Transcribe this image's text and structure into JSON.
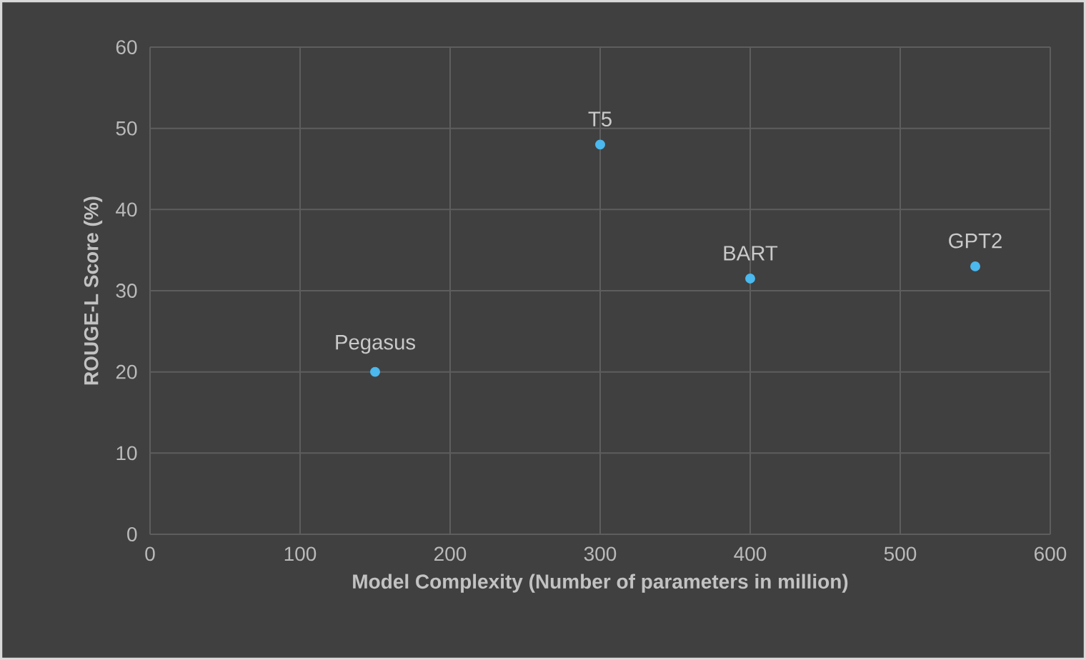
{
  "chart_data": {
    "type": "scatter",
    "xlabel": "Model Complexity (Number of parameters in million)",
    "ylabel": "ROUGE-L Score (%)",
    "x": [
      150,
      300,
      400,
      550
    ],
    "series": [
      {
        "color": "#4bb8ee",
        "values": [
          20,
          48,
          31.5,
          33
        ]
      }
    ],
    "annotations": [
      {
        "text": "Pegasus",
        "x": 150,
        "y": 20
      },
      {
        "text": "T5",
        "x": 300,
        "y": 48
      },
      {
        "text": "BART",
        "x": 400,
        "y": 31.5
      },
      {
        "text": "GPT2",
        "x": 550,
        "y": 33
      }
    ],
    "xlim": [
      0,
      600
    ],
    "ylim": [
      0,
      60
    ],
    "xticks": [
      0,
      100,
      200,
      300,
      400,
      500,
      600
    ],
    "yticks": [
      0,
      10,
      20,
      30,
      40,
      50,
      60
    ],
    "grid": true,
    "marker": "circle"
  }
}
